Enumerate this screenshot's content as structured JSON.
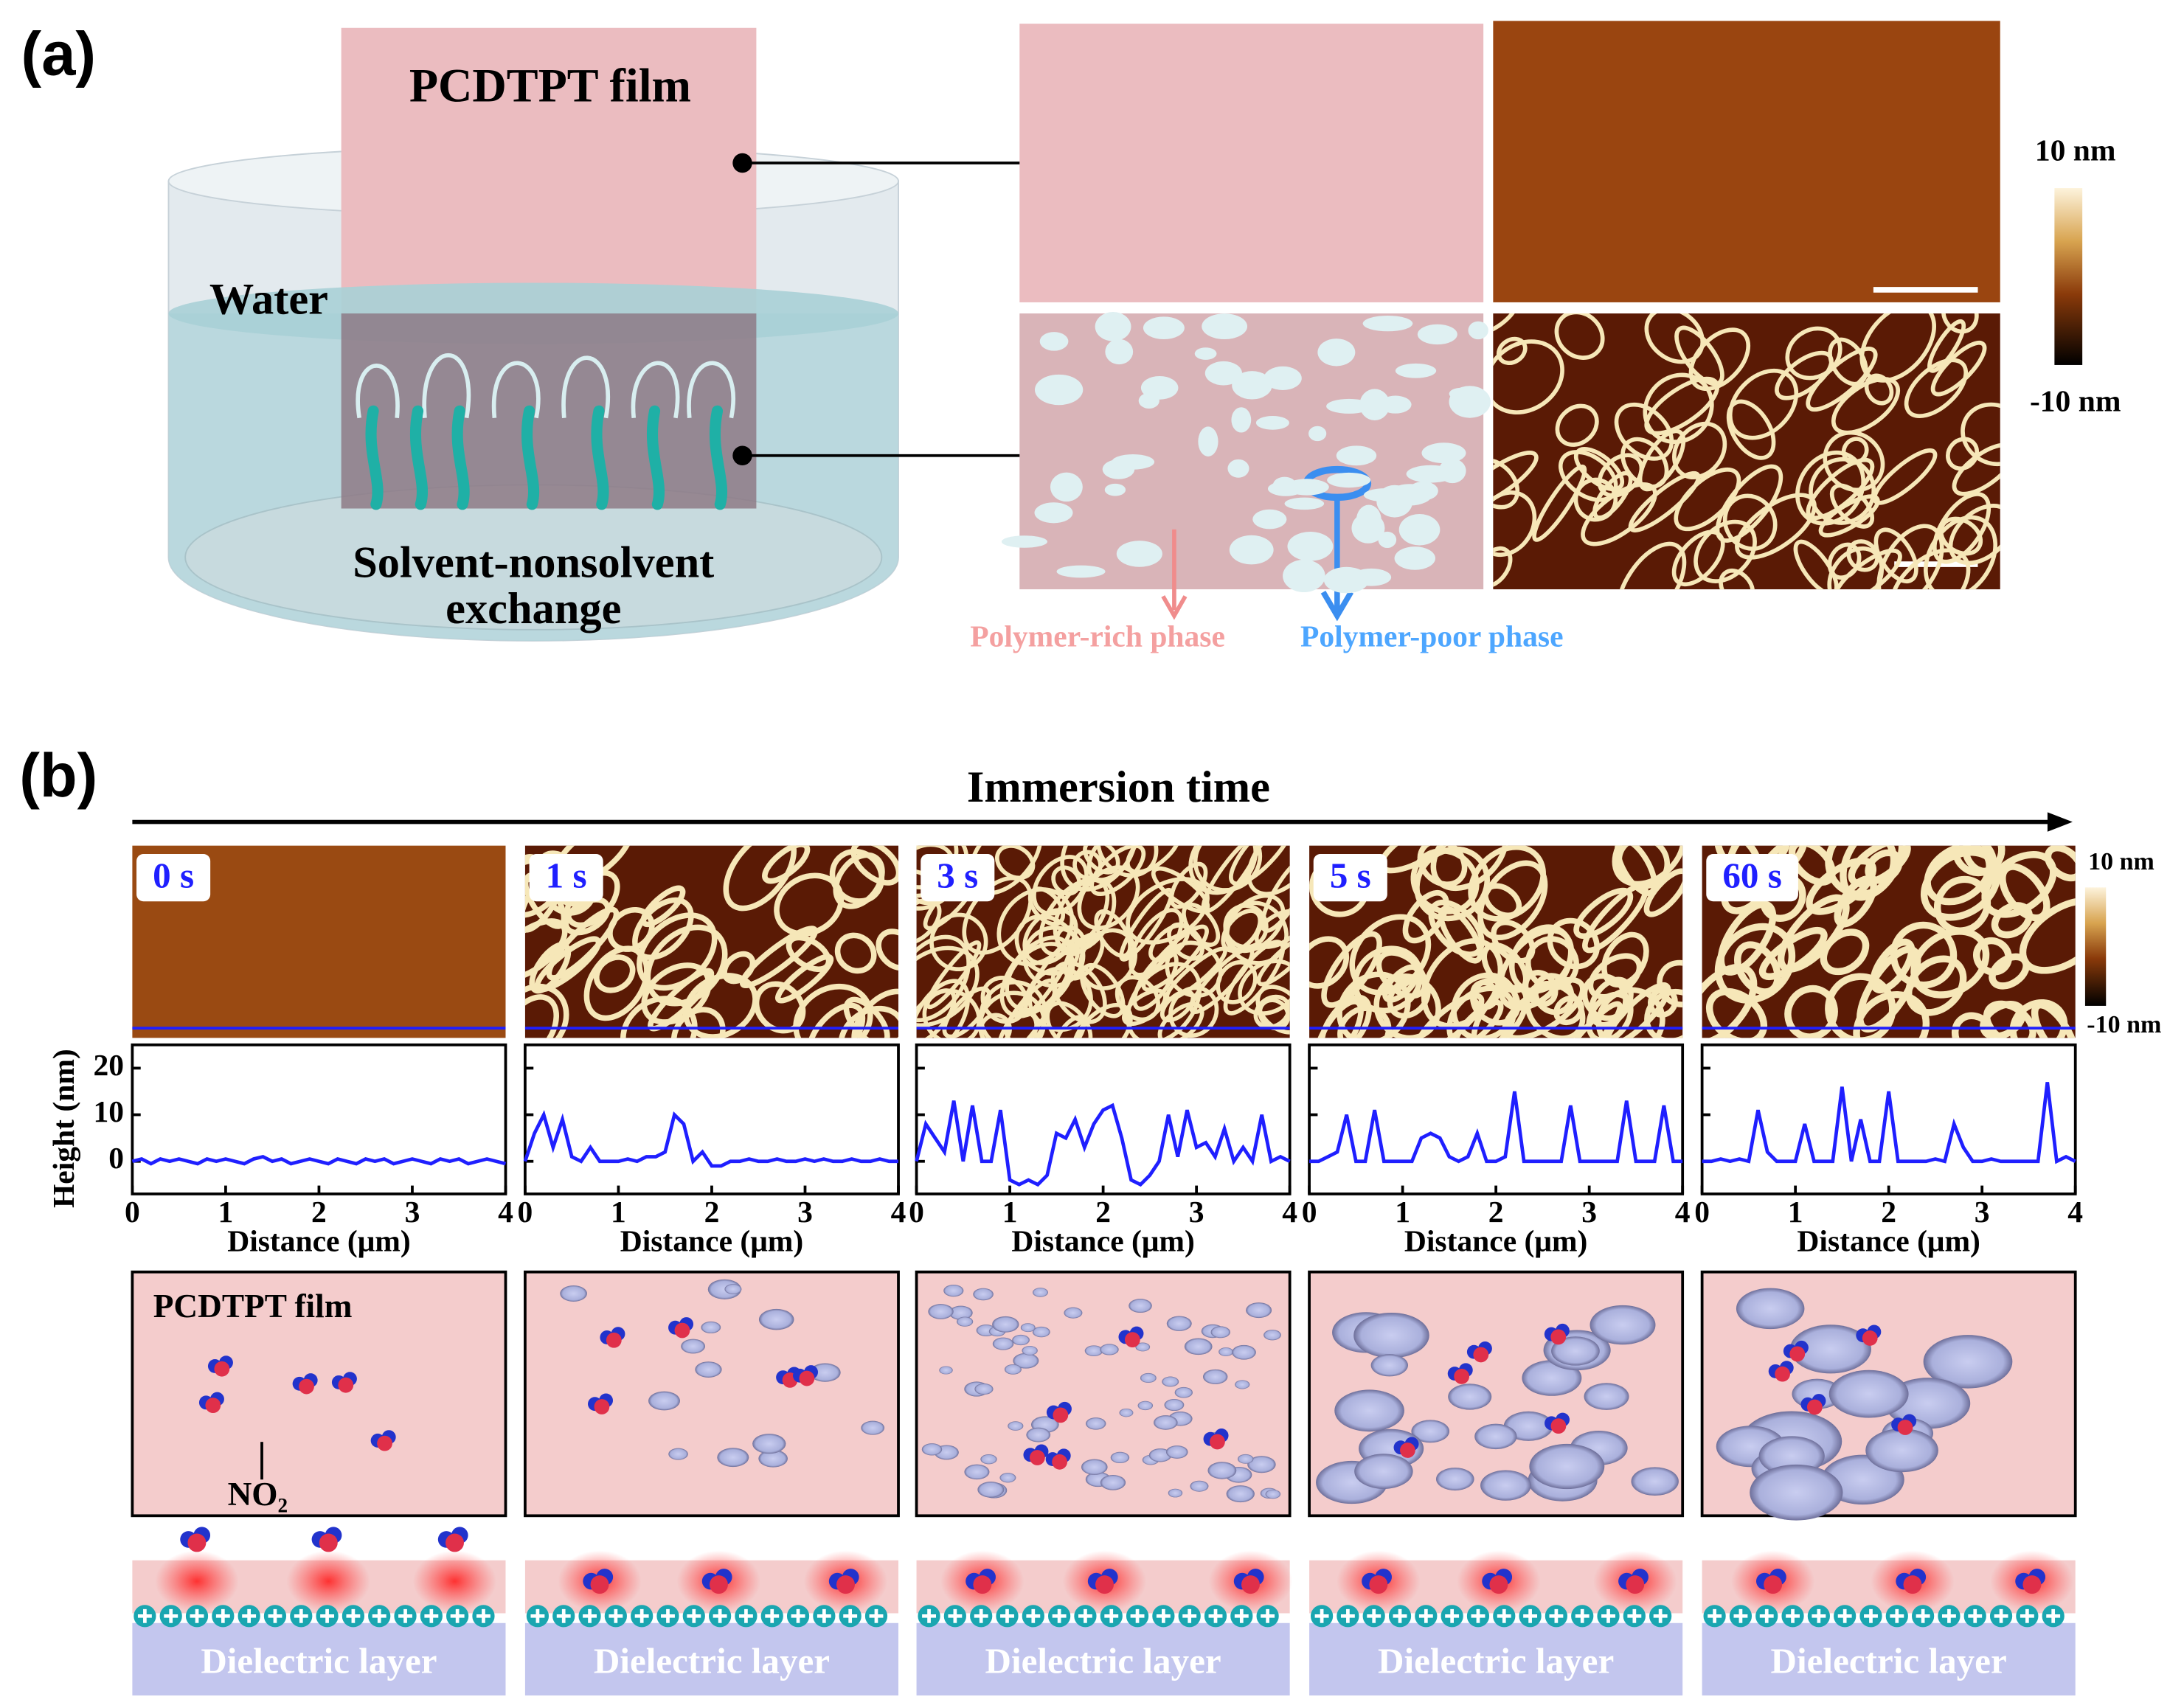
{
  "panel_a": {
    "label": "(a)",
    "film": "PCDTPT film",
    "water": "Water",
    "exchange": [
      "Solvent-nonsolvent",
      "exchange"
    ],
    "colorbar": {
      "max": "10 nm",
      "min": "-10 nm"
    },
    "rich_phase": "Polymer-rich phase",
    "poor_phase": "Polymer-poor phase"
  },
  "panel_b": {
    "label": "(b)",
    "axis_title": "Immersion time",
    "times": [
      "0 s",
      "1 s",
      "3 s",
      "5 s",
      "60 s"
    ],
    "colorbar": {
      "max": "10 nm",
      "min": "-10 nm"
    },
    "film": "PCDTPT film",
    "molecule": "NO₂",
    "dielectric": "Dielectric layer"
  },
  "chart_data": [
    {
      "type": "line",
      "x_label": "Distance (μm)",
      "y_label": "Height (nm)",
      "x": [
        0,
        0.1,
        0.2,
        0.3,
        0.4,
        0.5,
        0.6,
        0.7,
        0.8,
        0.9,
        1,
        1.1,
        1.2,
        1.3,
        1.4,
        1.5,
        1.6,
        1.7,
        1.8,
        1.9,
        2,
        2.1,
        2.2,
        2.3,
        2.4,
        2.5,
        2.6,
        2.7,
        2.8,
        2.9,
        3,
        3.1,
        3.2,
        3.3,
        3.4,
        3.5,
        3.6,
        3.7,
        3.8,
        3.9,
        4
      ],
      "series": [
        {
          "color": "#1f1fff",
          "values": [
            0,
            0.5,
            -0.5,
            0.5,
            0,
            0.5,
            0,
            -0.5,
            0.5,
            0,
            0.5,
            0,
            -0.5,
            0.5,
            1,
            0,
            0.5,
            -0.5,
            0,
            0.5,
            0,
            -0.5,
            0.5,
            0,
            -0.5,
            0.5,
            0,
            0.5,
            -0.5,
            0,
            0.5,
            0,
            -0.5,
            0.5,
            0,
            0.5,
            -0.5,
            0,
            0.5,
            0,
            -0.5
          ]
        }
      ],
      "xlim": [
        0,
        4
      ],
      "ylim": [
        -7,
        25
      ],
      "xticks": [
        0,
        1,
        2,
        3,
        4
      ],
      "yticks": [
        0,
        10,
        20
      ]
    },
    {
      "type": "line",
      "x_label": "Distance (μm)",
      "x": [
        0,
        0.1,
        0.2,
        0.3,
        0.4,
        0.5,
        0.6,
        0.7,
        0.8,
        0.9,
        1,
        1.1,
        1.2,
        1.3,
        1.4,
        1.5,
        1.6,
        1.7,
        1.8,
        1.9,
        2,
        2.1,
        2.2,
        2.3,
        2.4,
        2.5,
        2.6,
        2.7,
        2.8,
        2.9,
        3,
        3.1,
        3.2,
        3.3,
        3.4,
        3.5,
        3.6,
        3.7,
        3.8,
        3.9,
        4
      ],
      "series": [
        {
          "color": "#1f1fff",
          "values": [
            0,
            6,
            10,
            3,
            9,
            1,
            0,
            3,
            0,
            0,
            0,
            0.5,
            0,
            1,
            1,
            2,
            10,
            8,
            0,
            2,
            -1,
            -1,
            0,
            0,
            0.5,
            0,
            0,
            0.5,
            0,
            0,
            0.5,
            0,
            0.5,
            0,
            0,
            0.5,
            0,
            0,
            0.5,
            0,
            0
          ]
        }
      ],
      "xlim": [
        0,
        4
      ],
      "ylim": [
        -7,
        25
      ],
      "xticks": [
        0,
        1,
        2,
        3,
        4
      ],
      "yticks": [
        0,
        10,
        20
      ]
    },
    {
      "type": "line",
      "x_label": "Distance (μm)",
      "x": [
        0,
        0.1,
        0.2,
        0.3,
        0.4,
        0.5,
        0.6,
        0.7,
        0.8,
        0.9,
        1,
        1.1,
        1.2,
        1.3,
        1.4,
        1.5,
        1.6,
        1.7,
        1.8,
        1.9,
        2,
        2.1,
        2.2,
        2.3,
        2.4,
        2.5,
        2.6,
        2.7,
        2.8,
        2.9,
        3,
        3.1,
        3.2,
        3.3,
        3.4,
        3.5,
        3.6,
        3.7,
        3.8,
        3.9,
        4
      ],
      "series": [
        {
          "color": "#1f1fff",
          "values": [
            0,
            8,
            5,
            2,
            13,
            0,
            12,
            0,
            0,
            11,
            -4,
            -5,
            -4,
            -5,
            -3,
            6,
            5,
            9,
            3,
            8,
            11,
            12,
            5,
            -4,
            -5,
            -3,
            0,
            10,
            1,
            11,
            3,
            4,
            1,
            7,
            0,
            3,
            0,
            10,
            0,
            1,
            0
          ]
        }
      ],
      "xlim": [
        0,
        4
      ],
      "ylim": [
        -7,
        25
      ],
      "xticks": [
        0,
        1,
        2,
        3,
        4
      ],
      "yticks": [
        0,
        10,
        20
      ]
    },
    {
      "type": "line",
      "x_label": "Distance (μm)",
      "x": [
        0,
        0.1,
        0.2,
        0.3,
        0.4,
        0.5,
        0.6,
        0.7,
        0.8,
        0.9,
        1,
        1.1,
        1.2,
        1.3,
        1.4,
        1.5,
        1.6,
        1.7,
        1.8,
        1.9,
        2,
        2.1,
        2.2,
        2.3,
        2.4,
        2.5,
        2.6,
        2.7,
        2.8,
        2.9,
        3,
        3.1,
        3.2,
        3.3,
        3.4,
        3.5,
        3.6,
        3.7,
        3.8,
        3.9,
        4
      ],
      "series": [
        {
          "color": "#1f1fff",
          "values": [
            0,
            0,
            1,
            2,
            10,
            0,
            0,
            11,
            0,
            0,
            0,
            0,
            5,
            6,
            5,
            1,
            0,
            1,
            6,
            0,
            0,
            1,
            15,
            0,
            0,
            0,
            0,
            0,
            12,
            0,
            0,
            0,
            0,
            0,
            13,
            0,
            0,
            0,
            12,
            0,
            0
          ]
        }
      ],
      "xlim": [
        0,
        4
      ],
      "ylim": [
        -7,
        25
      ],
      "xticks": [
        0,
        1,
        2,
        3,
        4
      ],
      "yticks": [
        0,
        10,
        20
      ]
    },
    {
      "type": "line",
      "x_label": "Distance (μm)",
      "x": [
        0,
        0.1,
        0.2,
        0.3,
        0.4,
        0.5,
        0.6,
        0.7,
        0.8,
        0.9,
        1,
        1.1,
        1.2,
        1.3,
        1.4,
        1.5,
        1.6,
        1.7,
        1.8,
        1.9,
        2,
        2.1,
        2.2,
        2.3,
        2.4,
        2.5,
        2.6,
        2.7,
        2.8,
        2.9,
        3,
        3.1,
        3.2,
        3.3,
        3.4,
        3.5,
        3.6,
        3.7,
        3.8,
        3.9,
        4
      ],
      "series": [
        {
          "color": "#1f1fff",
          "values": [
            0,
            0,
            0.5,
            0,
            0.5,
            0,
            11,
            2,
            0,
            0,
            0,
            8,
            0,
            0,
            0,
            16,
            0,
            9,
            0,
            0,
            15,
            0,
            0,
            0,
            0,
            0.5,
            0,
            8,
            3,
            0,
            0,
            0.5,
            0,
            0,
            0,
            0,
            0,
            17,
            0,
            1,
            0
          ]
        }
      ],
      "xlim": [
        0,
        4
      ],
      "ylim": [
        -7,
        25
      ],
      "xticks": [
        0,
        1,
        2,
        3,
        4
      ],
      "yticks": [
        0,
        10,
        20
      ]
    }
  ]
}
